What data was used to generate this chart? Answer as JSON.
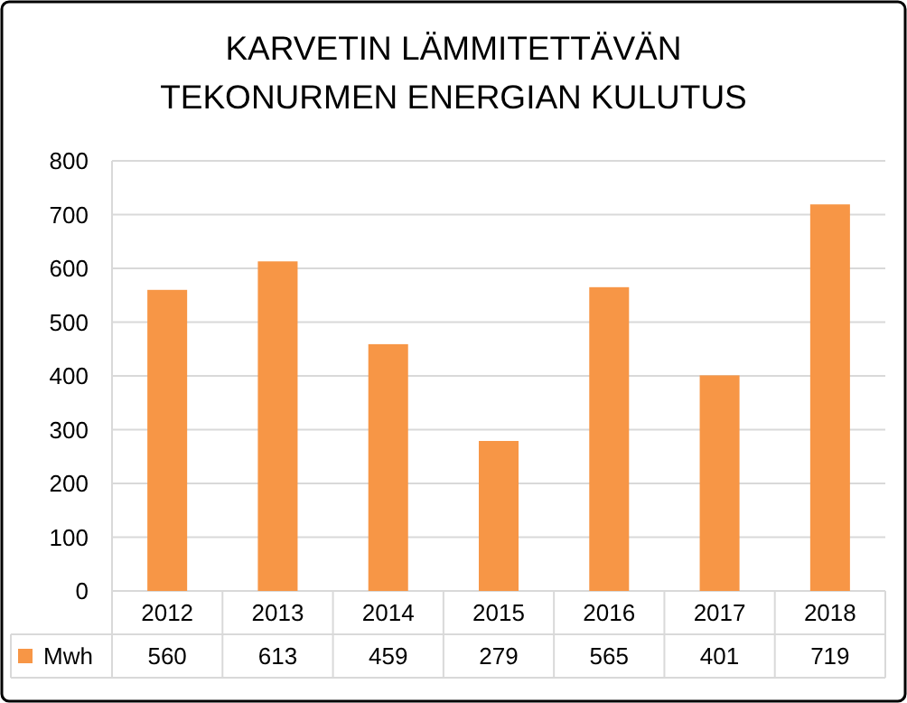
{
  "chart_data": {
    "type": "bar",
    "title": "KARVETIN LÄMMITETTÄVÄN TEKONURMEN ENERGIAN KULUTUS",
    "categories": [
      "2012",
      "2013",
      "2014",
      "2015",
      "2016",
      "2017",
      "2018"
    ],
    "series": [
      {
        "name": "Mwh",
        "color": "#f79646",
        "values": [
          560,
          613,
          459,
          279,
          565,
          401,
          719
        ]
      }
    ],
    "ylim": [
      0,
      800
    ],
    "yticks": [
      0,
      100,
      200,
      300,
      400,
      500,
      600,
      700,
      800
    ],
    "grid": "y",
    "legend": "bottom",
    "data_labels": true
  }
}
